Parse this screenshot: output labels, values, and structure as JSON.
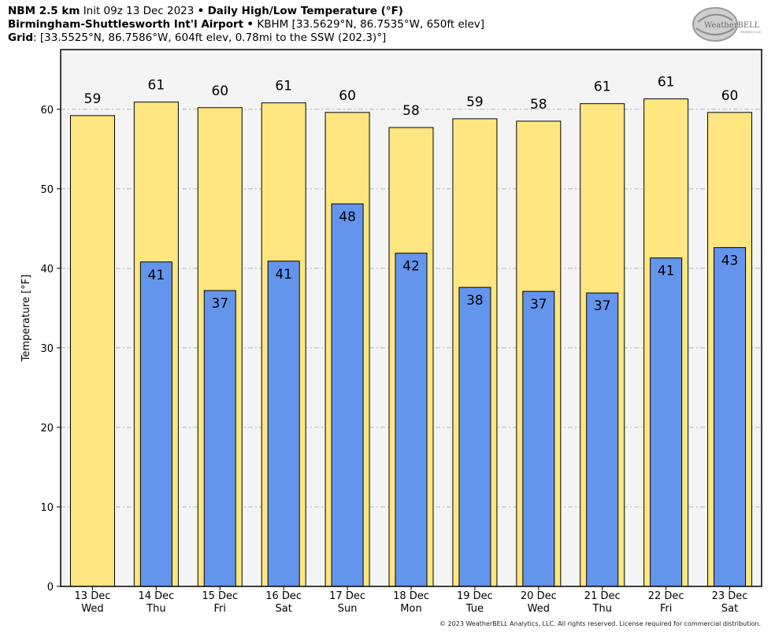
{
  "header": {
    "model": "NBM 2.5 km",
    "init": "Init 09z 13 Dec 2023",
    "bullet": "•",
    "product": "Daily High/Low Temperature (°F)",
    "station_name": "Birmingham-Shuttlesworth Int'l Airport",
    "station_info": "KBHM [33.5629°N, 86.7535°W, 650ft elev]",
    "grid_label": "Grid",
    "grid_info": ": [33.5525°N, 86.7586°W, 604ft elev, 0.78mi to the SSW (202.3)°]"
  },
  "logo": {
    "text": "WeatherBELL",
    "sub": "Analytics LLC"
  },
  "footer": "© 2023 WeatherBELL Analytics, LLC. All rights reserved. License required for commercial distribution.",
  "chart_data": {
    "type": "bar",
    "ylabel": "Temperature [°F]",
    "ylim": [
      0,
      67.5
    ],
    "yticks": [
      0,
      10,
      20,
      30,
      40,
      50,
      60
    ],
    "grid": true,
    "categories": [
      "13 Dec",
      "14 Dec",
      "15 Dec",
      "16 Dec",
      "17 Dec",
      "18 Dec",
      "19 Dec",
      "20 Dec",
      "21 Dec",
      "22 Dec",
      "23 Dec"
    ],
    "weekdays": [
      "Wed",
      "Thu",
      "Fri",
      "Sat",
      "Sun",
      "Mon",
      "Tue",
      "Wed",
      "Thu",
      "Fri",
      "Sat"
    ],
    "series": [
      {
        "color": "#ffe680",
        "values": [
          59.2,
          60.9,
          60.2,
          60.8,
          59.6,
          57.7,
          58.8,
          58.5,
          60.7,
          61.3,
          59.6
        ],
        "labels": [
          "59",
          "61",
          "60",
          "61",
          "60",
          "58",
          "59",
          "58",
          "61",
          "61",
          "60"
        ]
      },
      {
        "color": "#6495ed",
        "values": [
          null,
          40.8,
          37.2,
          40.9,
          48.1,
          41.9,
          37.6,
          37.1,
          36.9,
          41.3,
          42.6
        ],
        "labels": [
          "",
          "41",
          "37",
          "41",
          "48",
          "42",
          "38",
          "37",
          "37",
          "41",
          "43"
        ]
      }
    ]
  }
}
